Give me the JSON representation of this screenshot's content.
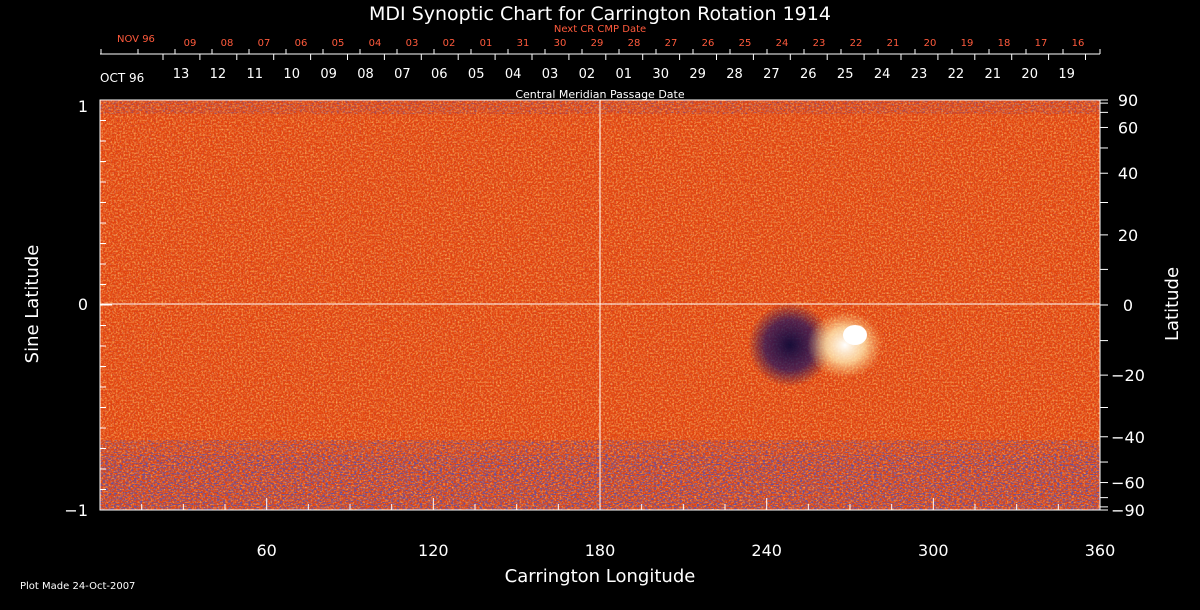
{
  "chart_data": {
    "type": "heatmap",
    "title": "MDI Synoptic Chart for Carrington Rotation 1914",
    "xlabel": "Carrington Longitude",
    "ylabel_left": "Sine Latitude",
    "ylabel_right": "Latitude",
    "xlim": [
      0,
      360
    ],
    "ylim": [
      -1,
      1
    ],
    "x_ticks": [
      "60",
      "120",
      "180",
      "240",
      "300",
      "360"
    ],
    "y_left_ticks": [
      "1",
      "0",
      "−1"
    ],
    "y_right_ticks": [
      "90",
      "60",
      "40",
      "20",
      "0",
      "−20",
      "−40",
      "−60",
      "−90"
    ],
    "top_axis_title": "Next CR CMP Date",
    "top_month_label": "NOV 96",
    "top_day_labels": [
      "09",
      "08",
      "07",
      "06",
      "05",
      "04",
      "03",
      "02",
      "01",
      "31",
      "30",
      "29",
      "28",
      "27",
      "26",
      "25",
      "24",
      "23",
      "22",
      "21",
      "20",
      "19",
      "18",
      "17",
      "16"
    ],
    "bottom_axis_title": "Central Meridian Passage Date",
    "bottom_month_label": "OCT 96",
    "bottom_day_labels": [
      "13",
      "12",
      "11",
      "10",
      "09",
      "08",
      "07",
      "06",
      "05",
      "04",
      "03",
      "02",
      "01",
      "30",
      "29",
      "28",
      "27",
      "26",
      "25",
      "24",
      "23",
      "22",
      "21",
      "20",
      "19"
    ],
    "footer": "Plot Made 24-Oct-2007",
    "colors": {
      "background": "#000000",
      "field": "#e84a12",
      "positive": "#ffffff",
      "negative": "#1a1050",
      "next_cr_text": "#ff5a3c"
    }
  }
}
